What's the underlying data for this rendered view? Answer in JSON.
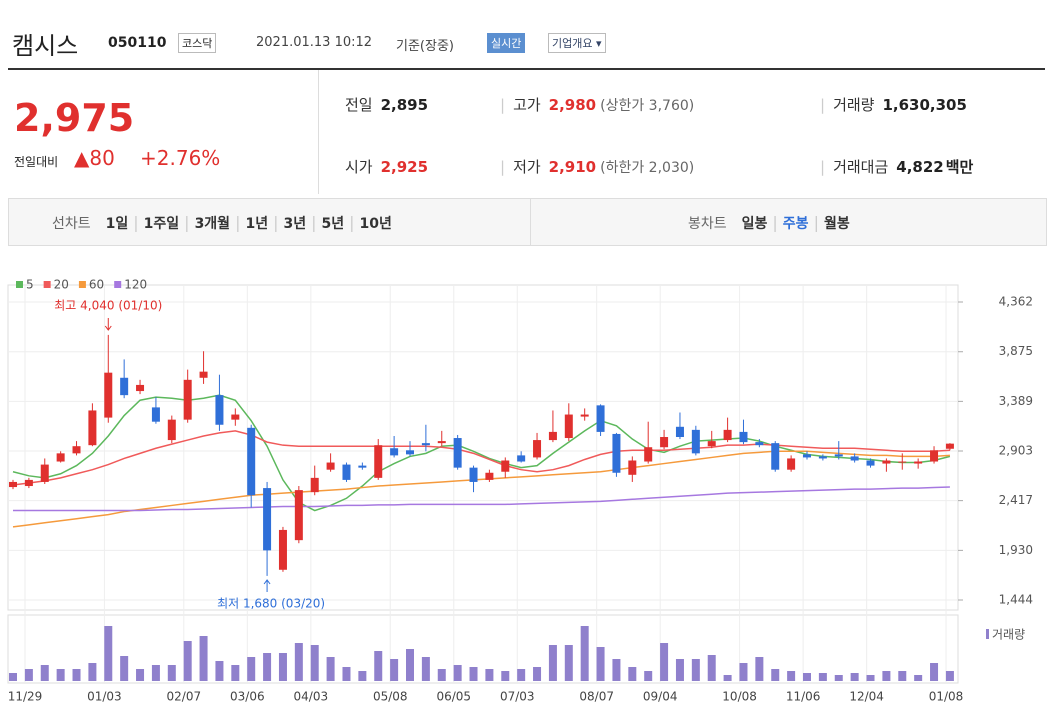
{
  "header": {
    "name": "캠시스",
    "code": "050110",
    "market": "코스닥",
    "datetime": "2021.01.13 10:12",
    "basis": "기준(장중)",
    "realtime": "실시간",
    "overview": "기업개요"
  },
  "summary": {
    "price": "2,975",
    "change_label": "전일대비",
    "change": "80",
    "change_pct": "+2.76%",
    "items": [
      {
        "label": "전일",
        "value": "2,895"
      },
      {
        "label": "고가",
        "value": "2,980",
        "note": "(상한가 3,760)"
      },
      {
        "label": "거래량",
        "value": "1,630,305"
      },
      {
        "label": "시가",
        "value": "2,925"
      },
      {
        "label": "저가",
        "value": "2,910",
        "note": "(하한가 2,030)"
      },
      {
        "label": "거래대금",
        "value": "4,822",
        "unit": "백만"
      }
    ]
  },
  "tabs": {
    "line_label": "선차트",
    "line_periods": [
      "1일",
      "1주일",
      "3개월",
      "1년",
      "3년",
      "5년",
      "10년"
    ],
    "candle_label": "봉차트",
    "candle_periods": [
      "일봉",
      "주봉",
      "월봉"
    ],
    "active_candle": 1
  },
  "chart_data": {
    "type": "candlestick",
    "categories": [
      "11/29",
      null,
      null,
      null,
      null,
      "01/03",
      null,
      null,
      null,
      null,
      "02/07",
      null,
      null,
      null,
      "03/06",
      null,
      null,
      null,
      "04/03",
      null,
      null,
      null,
      null,
      "05/08",
      null,
      null,
      null,
      "06/05",
      null,
      null,
      null,
      "07/03",
      null,
      null,
      null,
      null,
      "08/07",
      null,
      null,
      null,
      "09/04",
      null,
      null,
      null,
      null,
      "10/08",
      null,
      null,
      null,
      "11/06",
      null,
      null,
      null,
      "12/04",
      null,
      null,
      null,
      null,
      "01/08",
      null
    ],
    "open": [
      2550,
      2560,
      2600,
      2800,
      2880,
      2960,
      3230,
      3620,
      3490,
      3330,
      3010,
      3210,
      3620,
      3450,
      3210,
      3130,
      2540,
      1740,
      2030,
      2500,
      2720,
      2770,
      2760,
      2640,
      2930,
      2910,
      2980,
      2980,
      3030,
      2740,
      2620,
      2700,
      2860,
      2840,
      3010,
      3030,
      3240,
      3350,
      3070,
      2670,
      2800,
      2940,
      3140,
      3110,
      2950,
      3010,
      3090,
      2990,
      2980,
      2720,
      2870,
      2850,
      2870,
      2850,
      2810,
      2780,
      2790,
      2780,
      2800,
      2925
    ],
    "high": [
      2620,
      2640,
      2830,
      2900,
      3000,
      3370,
      4040,
      3800,
      3600,
      3430,
      3250,
      3700,
      3880,
      3650,
      3320,
      3160,
      2600,
      2160,
      2560,
      2760,
      2880,
      2790,
      2790,
      3020,
      3050,
      3000,
      3160,
      3100,
      3060,
      2760,
      2720,
      2840,
      2900,
      3080,
      3300,
      3370,
      3320,
      3360,
      3080,
      2850,
      3190,
      3110,
      3280,
      3150,
      3100,
      3230,
      3210,
      3020,
      3000,
      2860,
      2900,
      2870,
      3000,
      2880,
      2830,
      2830,
      2880,
      2830,
      2950,
      2980
    ],
    "low": [
      2530,
      2540,
      2580,
      2790,
      2860,
      2950,
      3180,
      3420,
      3460,
      3170,
      2980,
      3180,
      3560,
      3100,
      3150,
      2350,
      1680,
      1720,
      2000,
      2470,
      2700,
      2600,
      2720,
      2620,
      2840,
      2850,
      2900,
      2950,
      2720,
      2500,
      2600,
      2640,
      2790,
      2820,
      2990,
      3000,
      3200,
      3050,
      2650,
      2600,
      2780,
      2920,
      3020,
      2860,
      2930,
      2990,
      2970,
      2940,
      2700,
      2700,
      2820,
      2810,
      2820,
      2790,
      2740,
      2700,
      2720,
      2730,
      2780,
      2910
    ],
    "close": [
      2600,
      2620,
      2770,
      2880,
      2950,
      3300,
      3670,
      3450,
      3550,
      3190,
      3210,
      3600,
      3680,
      3160,
      3260,
      2470,
      1930,
      2130,
      2520,
      2640,
      2790,
      2620,
      2740,
      2960,
      2860,
      2870,
      2960,
      3000,
      2740,
      2600,
      2690,
      2810,
      2800,
      3010,
      3090,
      3260,
      3260,
      3090,
      2690,
      2810,
      2940,
      3040,
      3040,
      2880,
      3000,
      3110,
      2990,
      2960,
      2720,
      2830,
      2840,
      2830,
      2850,
      2810,
      2760,
      2810,
      2800,
      2800,
      2910,
      2975
    ],
    "up_color": "#e0302e",
    "down_color": "#2f6fd8",
    "series": [
      {
        "name": "5",
        "color": "#5cb85c",
        "values": [
          2700,
          2660,
          2640,
          2680,
          2760,
          2880,
          3050,
          3250,
          3400,
          3430,
          3420,
          3400,
          3420,
          3450,
          3400,
          3200,
          2950,
          2620,
          2400,
          2320,
          2370,
          2440,
          2560,
          2700,
          2780,
          2850,
          2880,
          2950,
          2960,
          2900,
          2830,
          2780,
          2740,
          2760,
          2880,
          2990,
          3100,
          3200,
          3150,
          3020,
          2920,
          2890,
          2950,
          3000,
          3010,
          3020,
          3030,
          3000,
          2950,
          2910,
          2870,
          2850,
          2840,
          2830,
          2820,
          2800,
          2790,
          2790,
          2810,
          2850
        ]
      },
      {
        "name": "20",
        "color": "#f05a5a",
        "values": [
          2570,
          2590,
          2610,
          2640,
          2680,
          2720,
          2770,
          2830,
          2880,
          2930,
          2970,
          3010,
          3050,
          3080,
          3100,
          3060,
          2990,
          2960,
          2950,
          2950,
          2950,
          2950,
          2950,
          2950,
          2950,
          2950,
          2950,
          2940,
          2920,
          2880,
          2820,
          2760,
          2720,
          2700,
          2720,
          2760,
          2820,
          2870,
          2900,
          2910,
          2910,
          2910,
          2920,
          2930,
          2940,
          2960,
          2960,
          2970,
          2960,
          2950,
          2940,
          2930,
          2930,
          2930,
          2920,
          2910,
          2900,
          2900,
          2900,
          2910
        ]
      },
      {
        "name": "60",
        "color": "#f59a3c",
        "values": [
          2160,
          2180,
          2200,
          2220,
          2240,
          2260,
          2280,
          2310,
          2330,
          2350,
          2370,
          2390,
          2410,
          2430,
          2450,
          2470,
          2480,
          2490,
          2500,
          2510,
          2520,
          2530,
          2545,
          2560,
          2570,
          2580,
          2590,
          2600,
          2610,
          2620,
          2630,
          2640,
          2650,
          2660,
          2670,
          2680,
          2690,
          2700,
          2720,
          2740,
          2760,
          2780,
          2800,
          2820,
          2840,
          2860,
          2880,
          2890,
          2900,
          2900,
          2900,
          2890,
          2880,
          2870,
          2860,
          2860,
          2850,
          2850,
          2850,
          2860
        ]
      },
      {
        "name": "120",
        "color": "#a678e0",
        "values": [
          2320,
          2320,
          2320,
          2320,
          2320,
          2320,
          2320,
          2320,
          2320,
          2325,
          2330,
          2330,
          2335,
          2340,
          2345,
          2350,
          2355,
          2360,
          2360,
          2360,
          2365,
          2370,
          2370,
          2375,
          2375,
          2380,
          2380,
          2380,
          2380,
          2380,
          2380,
          2380,
          2385,
          2390,
          2395,
          2400,
          2405,
          2410,
          2420,
          2430,
          2440,
          2450,
          2460,
          2470,
          2480,
          2490,
          2495,
          2500,
          2505,
          2510,
          2515,
          2520,
          2525,
          2530,
          2530,
          2535,
          2540,
          2540,
          2545,
          2550
        ]
      }
    ],
    "ylim": [
      1444,
      4362
    ],
    "yticks": [
      {
        "value": 4362,
        "label": "4,362"
      },
      {
        "value": 3875,
        "label": "3,875"
      },
      {
        "value": 3389,
        "label": "3,389"
      },
      {
        "value": 2903,
        "label": "2,903"
      },
      {
        "value": 2417,
        "label": "2,417"
      },
      {
        "value": 1930,
        "label": "1,930"
      },
      {
        "value": 1444,
        "label": "1,444"
      }
    ],
    "grid": true,
    "high_annotation": "최고 4,040 (01/10)",
    "low_annotation": "최저 1,680 (03/20)",
    "volume": {
      "name": "거래량",
      "color": "#8f80cc",
      "ylim": [
        0,
        60
      ],
      "values": [
        8,
        12,
        16,
        12,
        12,
        18,
        55,
        25,
        12,
        16,
        16,
        40,
        45,
        20,
        16,
        24,
        28,
        28,
        38,
        36,
        24,
        14,
        10,
        30,
        22,
        32,
        24,
        12,
        16,
        14,
        12,
        10,
        12,
        14,
        36,
        36,
        55,
        34,
        22,
        14,
        10,
        38,
        22,
        22,
        26,
        6,
        18,
        24,
        12,
        10,
        8,
        8,
        6,
        8,
        6,
        10,
        10,
        6,
        18,
        10
      ]
    }
  }
}
